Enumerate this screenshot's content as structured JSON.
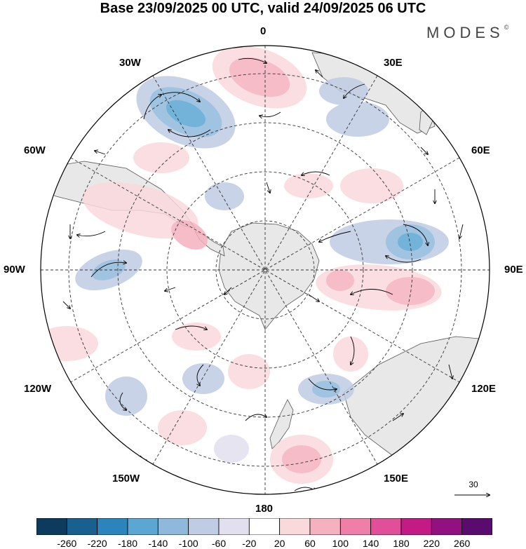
{
  "title": "Base 23/09/2025 00 UTC, valid 24/09/2025 06 UTC",
  "brand": {
    "name": "MODES",
    "mark": "©"
  },
  "longitude_labels": {
    "lon_0": "0",
    "lon_30e": "30E",
    "lon_60e": "60E",
    "lon_90e": "90E",
    "lon_120e": "120E",
    "lon_150e": "150E",
    "lon_180": "180",
    "lon_150w": "150W",
    "lon_120w": "120W",
    "lon_90w": "90W",
    "lon_60w": "60W",
    "lon_30w": "30W"
  },
  "vector_scale": {
    "value": "30"
  },
  "colorbar": {
    "colors": [
      "#0c3b5e",
      "#17608f",
      "#2b84bb",
      "#5ba6d2",
      "#8fb9dc",
      "#c0cbe4",
      "#e2e0ef",
      "#ffffff",
      "#f9d9dc",
      "#f5b1c0",
      "#f07fa8",
      "#e04f97",
      "#c41a86",
      "#921080",
      "#5a0b6e"
    ],
    "labels": [
      "-260",
      "-220",
      "-180",
      "-140",
      "-100",
      "-60",
      "-20",
      "20",
      "60",
      "100",
      "140",
      "180",
      "220",
      "260"
    ]
  },
  "colors": {
    "land": "#e8e8e8",
    "coast": "#555555",
    "grid": "#333333",
    "neg_strong": "#5ba6d2",
    "neg_mid": "#8fb9dc",
    "neg_weak": "#c0cbe4",
    "pos_weak": "#f9d9dc",
    "pos_mid": "#f5b1c0",
    "pos_strong": "#f07fa8"
  }
}
